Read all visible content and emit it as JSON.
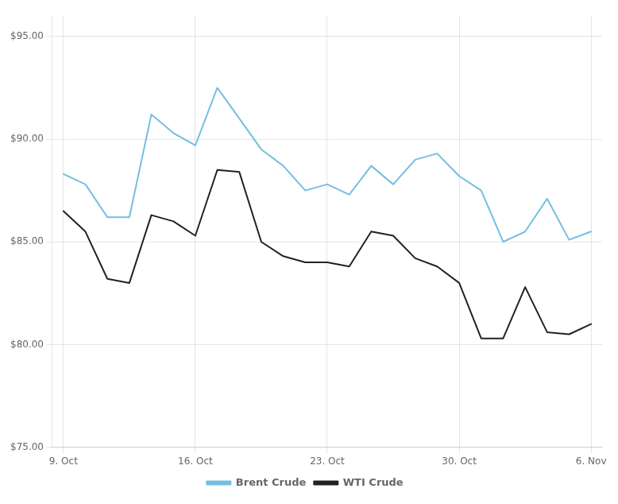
{
  "chart_data": {
    "type": "line",
    "categories": [
      "9. Oct",
      null,
      null,
      null,
      null,
      null,
      "16. Oct",
      null,
      null,
      null,
      null,
      null,
      "23. Oct",
      null,
      null,
      null,
      null,
      null,
      "30. Oct",
      null,
      null,
      null,
      null,
      null,
      "6. Nov"
    ],
    "series": [
      {
        "name": "Brent Crude",
        "color": "#74BFE0",
        "marker": "none",
        "line_style": "solid",
        "values": [
          88.3,
          87.8,
          86.2,
          86.2,
          91.2,
          90.3,
          89.7,
          92.5,
          91.0,
          89.5,
          88.7,
          87.5,
          87.8,
          87.3,
          88.7,
          87.8,
          89.0,
          89.3,
          88.2,
          87.5,
          85.0,
          85.5,
          87.1,
          85.1,
          85.5
        ]
      },
      {
        "name": "WTI Crude",
        "color": "#222222",
        "marker": "none",
        "line_style": "solid",
        "values": [
          86.5,
          85.5,
          83.2,
          83.0,
          86.3,
          86.0,
          85.3,
          88.5,
          88.4,
          85.0,
          84.3,
          84.0,
          84.0,
          83.8,
          85.5,
          85.3,
          84.2,
          83.8,
          83.0,
          80.3,
          80.3,
          82.8,
          80.6,
          80.5,
          81.0
        ]
      }
    ],
    "ylim": [
      75.0,
      96.0
    ],
    "yticks": [
      {
        "value": 75.0,
        "label": "$75.00"
      },
      {
        "value": 80.0,
        "label": "$80.00"
      },
      {
        "value": 85.0,
        "label": "$85.00"
      },
      {
        "value": 90.0,
        "label": "$90.00"
      },
      {
        "value": 95.0,
        "label": "$95.00"
      }
    ],
    "grid": true,
    "legend": "bottom"
  }
}
